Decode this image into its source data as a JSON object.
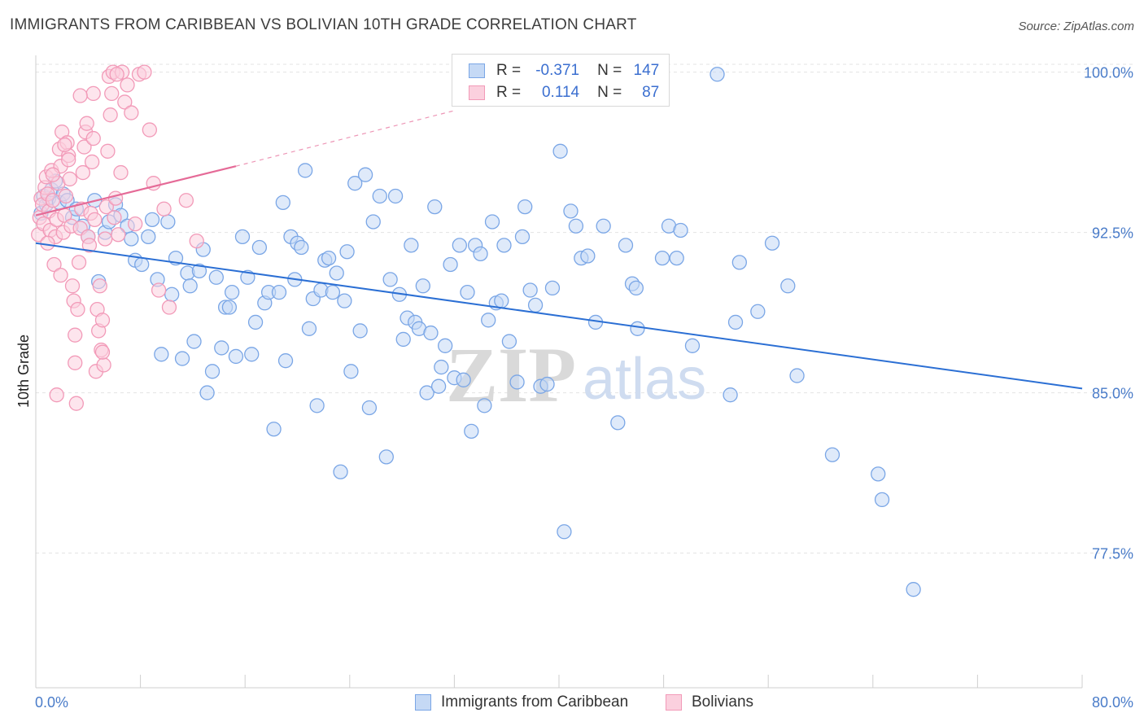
{
  "title": "IMMIGRANTS FROM CARIBBEAN VS BOLIVIAN 10TH GRADE CORRELATION CHART",
  "source": "Source: ZipAtlas.com",
  "watermark": {
    "zip": "ZIP",
    "atlas": "atlas"
  },
  "legend": {
    "r_label": "R =",
    "n_label": "N =",
    "rows": [
      {
        "r": "-0.371",
        "n": "147"
      },
      {
        "r": "0.114",
        "n": "87"
      }
    ]
  },
  "chart_data": {
    "type": "scatter",
    "title": "IMMIGRANTS FROM CARIBBEAN VS BOLIVIAN 10TH GRADE CORRELATION CHART",
    "xlabel": "",
    "ylabel": "10th Grade",
    "xlim": [
      0,
      80
    ],
    "ylim": [
      71.2,
      101.7
    ],
    "x_tick_labels": [
      "0.0%",
      "80.0%"
    ],
    "y_ticks": [
      100.0,
      92.5,
      85.0,
      77.5
    ],
    "y_tick_labels": [
      "100.0%",
      "92.5%",
      "85.0%",
      "77.5%"
    ],
    "grid": true,
    "legend_position": "top-center",
    "series": [
      {
        "name": "Immigrants from Caribbean",
        "color": "#7aa6e6",
        "fill": "#c5d9f5",
        "trend": {
          "x": [
            0,
            80
          ],
          "y": [
            92.0,
            85.2
          ],
          "color": "#2b6fd4"
        },
        "points": [
          [
            0.4,
            93.4
          ],
          [
            0.6,
            94.2
          ],
          [
            0.8,
            93.8
          ],
          [
            1.0,
            94.1
          ],
          [
            1.2,
            94.5
          ],
          [
            1.5,
            94.9
          ],
          [
            1.8,
            93.9
          ],
          [
            2.1,
            94.3
          ],
          [
            2.4,
            94.0
          ],
          [
            2.8,
            93.2
          ],
          [
            3.1,
            93.6
          ],
          [
            3.6,
            92.8
          ],
          [
            4.0,
            92.3
          ],
          [
            4.5,
            94.0
          ],
          [
            4.8,
            90.2
          ],
          [
            5.3,
            92.5
          ],
          [
            5.6,
            93.0
          ],
          [
            6.1,
            93.8
          ],
          [
            6.5,
            93.3
          ],
          [
            7.0,
            92.8
          ],
          [
            7.3,
            92.2
          ],
          [
            7.6,
            91.2
          ],
          [
            8.1,
            91.0
          ],
          [
            8.6,
            92.3
          ],
          [
            8.9,
            93.1
          ],
          [
            9.3,
            90.3
          ],
          [
            9.6,
            86.8
          ],
          [
            10.1,
            93.0
          ],
          [
            10.4,
            89.6
          ],
          [
            10.7,
            91.3
          ],
          [
            11.2,
            86.6
          ],
          [
            11.6,
            90.6
          ],
          [
            11.8,
            90.0
          ],
          [
            12.1,
            87.4
          ],
          [
            12.5,
            90.7
          ],
          [
            12.8,
            91.7
          ],
          [
            13.1,
            85.0
          ],
          [
            13.5,
            86.0
          ],
          [
            13.8,
            90.4
          ],
          [
            14.2,
            87.1
          ],
          [
            14.5,
            89.0
          ],
          [
            14.8,
            89.0
          ],
          [
            15.0,
            89.7
          ],
          [
            15.3,
            86.7
          ],
          [
            15.8,
            92.3
          ],
          [
            16.2,
            90.4
          ],
          [
            16.5,
            86.8
          ],
          [
            16.8,
            88.3
          ],
          [
            17.1,
            91.8
          ],
          [
            17.5,
            89.2
          ],
          [
            17.8,
            89.7
          ],
          [
            18.2,
            83.3
          ],
          [
            18.6,
            89.7
          ],
          [
            18.9,
            93.9
          ],
          [
            19.1,
            86.5
          ],
          [
            19.5,
            92.3
          ],
          [
            19.8,
            90.3
          ],
          [
            20.0,
            92.0
          ],
          [
            20.3,
            91.8
          ],
          [
            20.6,
            95.4
          ],
          [
            20.9,
            88.0
          ],
          [
            21.2,
            89.4
          ],
          [
            21.5,
            84.4
          ],
          [
            21.8,
            89.8
          ],
          [
            22.1,
            91.2
          ],
          [
            22.4,
            91.3
          ],
          [
            22.7,
            89.7
          ],
          [
            23.0,
            90.6
          ],
          [
            23.3,
            81.3
          ],
          [
            23.6,
            89.3
          ],
          [
            23.8,
            91.6
          ],
          [
            24.1,
            86.0
          ],
          [
            24.4,
            94.8
          ],
          [
            24.8,
            87.9
          ],
          [
            25.2,
            95.2
          ],
          [
            25.5,
            84.3
          ],
          [
            25.8,
            93.0
          ],
          [
            26.3,
            94.2
          ],
          [
            26.8,
            82.0
          ],
          [
            27.1,
            90.3
          ],
          [
            27.5,
            94.2
          ],
          [
            27.8,
            89.6
          ],
          [
            28.1,
            87.5
          ],
          [
            28.4,
            88.5
          ],
          [
            28.7,
            91.9
          ],
          [
            29.0,
            88.3
          ],
          [
            29.3,
            88.0
          ],
          [
            29.6,
            90.0
          ],
          [
            29.9,
            85.0
          ],
          [
            30.2,
            87.8
          ],
          [
            30.5,
            93.7
          ],
          [
            30.8,
            85.3
          ],
          [
            31.0,
            86.2
          ],
          [
            31.3,
            87.2
          ],
          [
            31.7,
            91.0
          ],
          [
            32.0,
            85.7
          ],
          [
            32.4,
            91.9
          ],
          [
            32.7,
            85.6
          ],
          [
            33.0,
            89.7
          ],
          [
            33.3,
            83.2
          ],
          [
            33.6,
            91.9
          ],
          [
            34.0,
            91.5
          ],
          [
            34.3,
            84.4
          ],
          [
            34.6,
            88.4
          ],
          [
            34.9,
            93.0
          ],
          [
            35.2,
            89.2
          ],
          [
            35.6,
            89.3
          ],
          [
            35.8,
            91.9
          ],
          [
            36.2,
            87.4
          ],
          [
            36.8,
            85.5
          ],
          [
            37.2,
            92.3
          ],
          [
            37.4,
            93.7
          ],
          [
            37.8,
            89.8
          ],
          [
            38.2,
            89.1
          ],
          [
            38.6,
            85.3
          ],
          [
            39.1,
            85.4
          ],
          [
            39.5,
            89.9
          ],
          [
            40.1,
            96.3
          ],
          [
            40.4,
            78.5
          ],
          [
            40.9,
            93.5
          ],
          [
            41.3,
            92.8
          ],
          [
            41.7,
            91.3
          ],
          [
            42.2,
            91.4
          ],
          [
            42.8,
            88.3
          ],
          [
            43.4,
            92.8
          ],
          [
            45.1,
            91.9
          ],
          [
            45.6,
            90.1
          ],
          [
            45.9,
            89.9
          ],
          [
            46.0,
            88.0
          ],
          [
            47.9,
            91.3
          ],
          [
            48.4,
            92.8
          ],
          [
            49.0,
            91.3
          ],
          [
            49.3,
            92.6
          ],
          [
            50.2,
            87.2
          ],
          [
            52.1,
            99.9
          ],
          [
            53.5,
            88.3
          ],
          [
            53.8,
            91.1
          ],
          [
            55.2,
            88.8
          ],
          [
            56.3,
            92.0
          ],
          [
            57.5,
            90.0
          ],
          [
            60.9,
            82.1
          ],
          [
            64.4,
            81.2
          ],
          [
            64.7,
            80.0
          ],
          [
            67.1,
            75.8
          ],
          [
            58.2,
            85.8
          ],
          [
            53.1,
            84.9
          ],
          [
            44.5,
            83.6
          ]
        ]
      },
      {
        "name": "Bolivians",
        "color": "#f29ab8",
        "fill": "#fbd0de",
        "trend": {
          "x": [
            0,
            15.3
          ],
          "y": [
            93.3,
            95.6
          ],
          "color": "#e56a97",
          "dashed_extension_to": [
            32,
            98.2
          ]
        },
        "points": [
          [
            0.2,
            92.4
          ],
          [
            0.3,
            93.2
          ],
          [
            0.4,
            94.1
          ],
          [
            0.5,
            93.8
          ],
          [
            0.6,
            92.9
          ],
          [
            0.7,
            94.6
          ],
          [
            0.8,
            95.1
          ],
          [
            0.9,
            94.3
          ],
          [
            1.0,
            93.5
          ],
          [
            1.1,
            92.6
          ],
          [
            1.2,
            95.4
          ],
          [
            1.3,
            94.0
          ],
          [
            1.4,
            91.0
          ],
          [
            1.5,
            92.3
          ],
          [
            1.6,
            93.1
          ],
          [
            1.7,
            94.8
          ],
          [
            1.8,
            96.4
          ],
          [
            1.9,
            95.6
          ],
          [
            2.0,
            97.2
          ],
          [
            2.1,
            92.5
          ],
          [
            2.2,
            93.3
          ],
          [
            2.3,
            94.2
          ],
          [
            2.4,
            96.7
          ],
          [
            2.5,
            96.1
          ],
          [
            2.6,
            95.0
          ],
          [
            2.7,
            92.8
          ],
          [
            2.8,
            90.0
          ],
          [
            2.9,
            89.3
          ],
          [
            3.0,
            86.4
          ],
          [
            3.1,
            84.5
          ],
          [
            3.2,
            88.9
          ],
          [
            3.3,
            91.1
          ],
          [
            3.4,
            92.7
          ],
          [
            3.5,
            93.6
          ],
          [
            3.6,
            95.3
          ],
          [
            3.7,
            96.5
          ],
          [
            3.8,
            97.2
          ],
          [
            3.9,
            97.6
          ],
          [
            4.0,
            92.3
          ],
          [
            4.1,
            91.9
          ],
          [
            4.2,
            93.4
          ],
          [
            4.3,
            95.8
          ],
          [
            4.4,
            96.9
          ],
          [
            4.5,
            93.1
          ],
          [
            4.6,
            86.0
          ],
          [
            4.7,
            88.9
          ],
          [
            4.8,
            87.9
          ],
          [
            4.9,
            90.0
          ],
          [
            5.0,
            87.0
          ],
          [
            5.1,
            88.4
          ],
          [
            5.2,
            86.3
          ],
          [
            5.3,
            92.2
          ],
          [
            5.4,
            93.7
          ],
          [
            5.5,
            96.3
          ],
          [
            5.6,
            99.8
          ],
          [
            5.7,
            98.0
          ],
          [
            5.8,
            99.0
          ],
          [
            5.9,
            100.0
          ],
          [
            6.0,
            93.2
          ],
          [
            6.1,
            94.1
          ],
          [
            6.3,
            92.4
          ],
          [
            6.5,
            95.3
          ],
          [
            6.8,
            98.6
          ],
          [
            7.0,
            99.4
          ],
          [
            7.3,
            98.1
          ],
          [
            7.6,
            92.9
          ],
          [
            7.9,
            99.9
          ],
          [
            8.3,
            100.0
          ],
          [
            8.7,
            97.3
          ],
          [
            9.0,
            94.8
          ],
          [
            9.4,
            89.8
          ],
          [
            9.8,
            93.6
          ],
          [
            10.2,
            89.0
          ],
          [
            11.5,
            94.0
          ],
          [
            12.3,
            92.1
          ],
          [
            6.6,
            100.0
          ],
          [
            2.5,
            95.9
          ],
          [
            1.6,
            84.9
          ],
          [
            3.0,
            87.7
          ],
          [
            5.1,
            86.9
          ],
          [
            0.9,
            92.0
          ],
          [
            1.9,
            90.5
          ],
          [
            2.2,
            96.6
          ],
          [
            4.4,
            99.0
          ],
          [
            6.2,
            99.9
          ],
          [
            1.3,
            95.2
          ],
          [
            3.4,
            98.9
          ]
        ]
      }
    ]
  }
}
